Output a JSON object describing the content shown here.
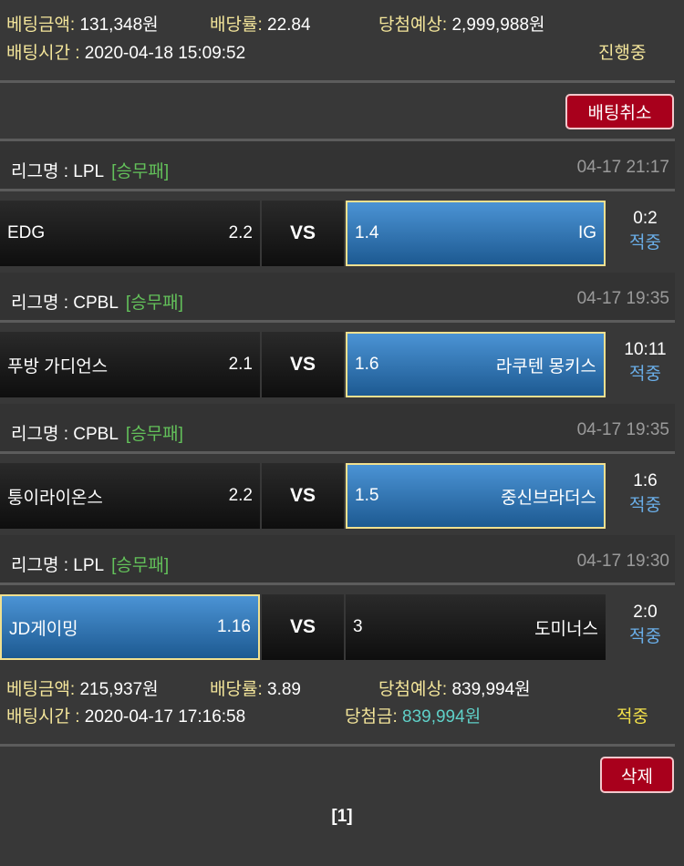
{
  "bets": [
    {
      "amount_label": "베팅금액:",
      "amount": "131,348원",
      "odds_label": "배당률:",
      "odds": "22.84",
      "expected_label": "당첨예상:",
      "expected": "2,999,988원",
      "time_label": "배팅시간 :",
      "time": "2020-04-18 15:09:52",
      "status": "진행중",
      "action": "배팅취소",
      "matches": [
        {
          "league": "리그명 : LPL",
          "type": "[승무패]",
          "datetime": "04-17 21:17",
          "home": "EDG",
          "home_odds": "2.2",
          "vs": "VS",
          "away_odds": "1.4",
          "away": "IG",
          "score": "0:2",
          "result": "적중",
          "selected": "away"
        }
      ]
    },
    {
      "amount_label": "베팅금액:",
      "amount": "215,937원",
      "odds_label": "배당률:",
      "odds": "3.89",
      "expected_label": "당첨예상:",
      "expected": "839,994원",
      "time_label": "배팅시간 :",
      "time": "2020-04-17 17:16:58",
      "win_label": "당첨금:",
      "win": "839,994원",
      "status": "적중",
      "action": "삭제",
      "matches": [
        {
          "league": "리그명 : CPBL",
          "type": "[승무패]",
          "datetime": "04-17 19:35",
          "home": "푸방 가디언스",
          "home_odds": "2.1",
          "vs": "VS",
          "away_odds": "1.6",
          "away": "라쿠텐 몽키스",
          "score": "10:11",
          "result": "적중",
          "selected": "away"
        },
        {
          "league": "리그명 : CPBL",
          "type": "[승무패]",
          "datetime": "04-17 19:35",
          "home": "퉁이라이온스",
          "home_odds": "2.2",
          "vs": "VS",
          "away_odds": "1.5",
          "away": "중신브라더스",
          "score": "1:6",
          "result": "적중",
          "selected": "away"
        },
        {
          "league": "리그명 : LPL",
          "type": "[승무패]",
          "datetime": "04-17 19:30",
          "home": "JD게이밍",
          "home_odds": "1.16",
          "vs": "VS",
          "away_odds": "3",
          "away": "도미너스",
          "score": "2:0",
          "result": "적중",
          "selected": "home"
        }
      ]
    }
  ],
  "pagination": "[1]",
  "colors": {
    "background": "#383838",
    "label": "#f3e59a",
    "league_type": "#63c15a",
    "result": "#6aaee8",
    "win_amount": "#5fd0c8",
    "button": "#a8001c",
    "selected": "#2f78b8"
  }
}
